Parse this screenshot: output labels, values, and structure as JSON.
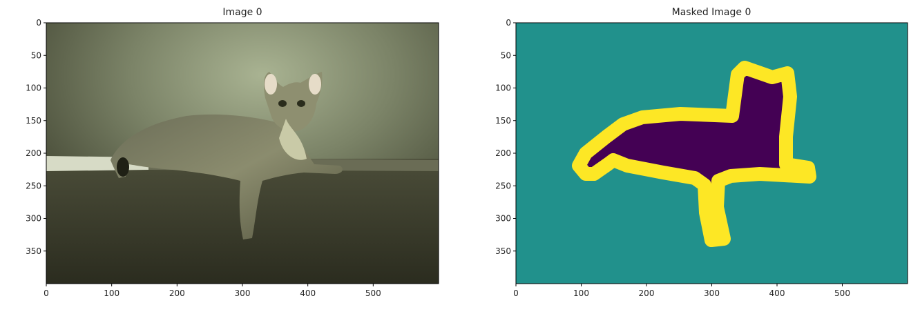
{
  "chart_data": [
    {
      "type": "image",
      "title": "Image 0",
      "xlim": [
        0,
        600
      ],
      "ylim": [
        400,
        0
      ],
      "xticks": [
        0,
        100,
        200,
        300,
        400,
        500
      ],
      "yticks": [
        0,
        50,
        100,
        150,
        200,
        250,
        300,
        350
      ],
      "grid": false,
      "content": "photo-cat"
    },
    {
      "type": "image",
      "title": "Masked Image 0",
      "xlim": [
        0,
        600
      ],
      "ylim": [
        400,
        0
      ],
      "xticks": [
        0,
        100,
        200,
        300,
        400,
        500
      ],
      "yticks": [
        0,
        50,
        100,
        150,
        200,
        250,
        300,
        350
      ],
      "grid": false,
      "content": "segmentation-mask",
      "colors": {
        "background": "#21918c",
        "boundary": "#fde725",
        "object": "#440154"
      }
    }
  ]
}
